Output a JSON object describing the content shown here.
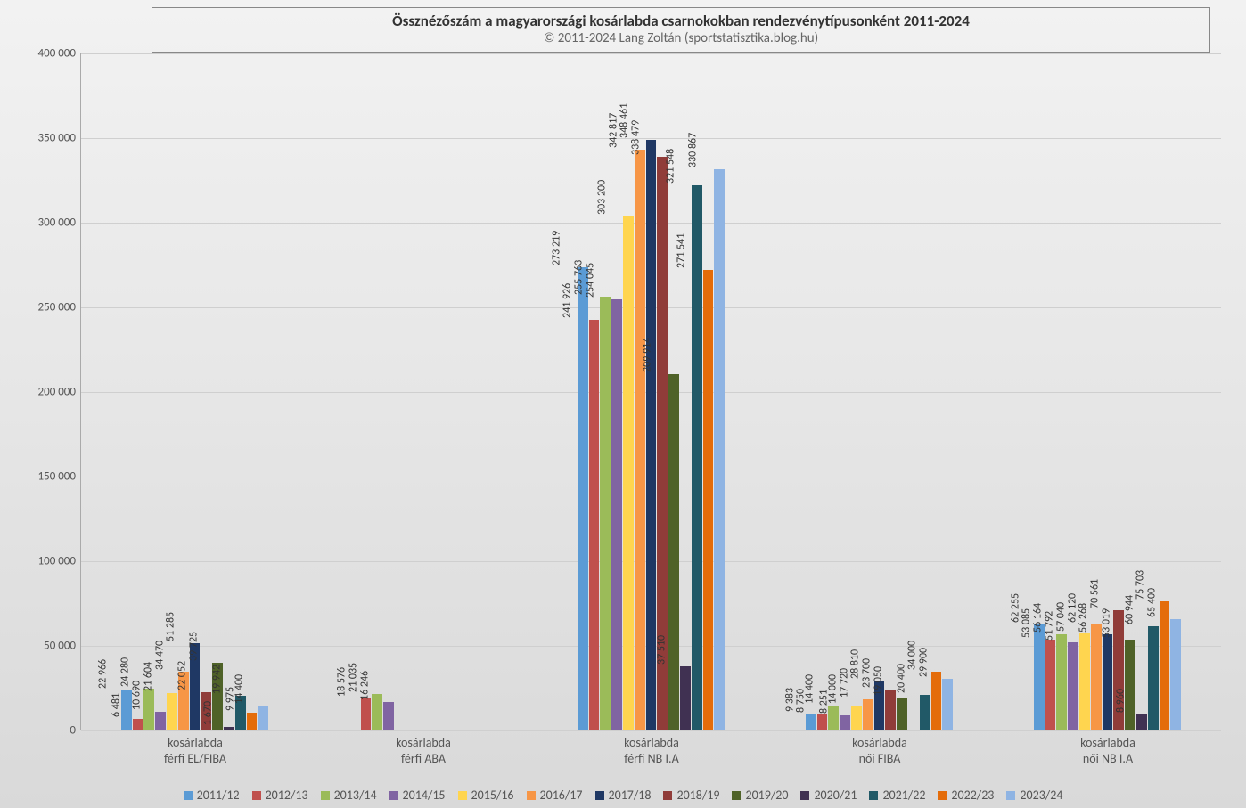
{
  "chart": {
    "type": "bar",
    "title": "Össznézőszám a magyarországi kosárlabda csarnokokban rendezvénytípusonként 2011-2024",
    "subtitle": "© 2011-2024 Lang Zoltán (sportstatisztika.blog.hu)",
    "title_fontsize": 17,
    "subtitle_fontsize": 15,
    "title_color": "#333333",
    "subtitle_color": "#666666",
    "background_gradient": [
      "#f2f2f2",
      "#e6e6e6",
      "#d9d9d9"
    ],
    "grid_color": "#cfcfcf",
    "axis_color": "#aaaaaa",
    "tick_font_size": 13,
    "tick_color": "#555555",
    "cat_label_fontsize": 14,
    "data_label_fontsize": 12,
    "data_label_color": "#333333",
    "legend_fontsize": 14,
    "ylim": [
      0,
      400000
    ],
    "ytick_step": 50000,
    "yticks": [
      "0",
      "50 000",
      "100 000",
      "150 000",
      "200 000",
      "250 000",
      "300 000",
      "350 000",
      "400 000"
    ],
    "number_thousands_sep": " ",
    "bar_group_gap_ratio": 0.35,
    "series": [
      {
        "label": "2011/12",
        "color": "#5b9bd5"
      },
      {
        "label": "2012/13",
        "color": "#c0504d"
      },
      {
        "label": "2013/14",
        "color": "#9bbb59"
      },
      {
        "label": "2014/15",
        "color": "#8064a2"
      },
      {
        "label": "2015/16",
        "color": "#ffd54f"
      },
      {
        "label": "2016/17",
        "color": "#f79646"
      },
      {
        "label": "2017/18",
        "color": "#1f3864"
      },
      {
        "label": "2018/19",
        "color": "#903c39"
      },
      {
        "label": "2019/20",
        "color": "#4f6228"
      },
      {
        "label": "2020/21",
        "color": "#403152"
      },
      {
        "label": "2021/22",
        "color": "#215967"
      },
      {
        "label": "2022/23",
        "color": "#e46c0a"
      },
      {
        "label": "2023/24",
        "color": "#8fb4e3"
      }
    ],
    "categories": [
      {
        "label": "kosárlabda\nférfi EL/FIBA",
        "values": [
          22966,
          6481,
          24280,
          10690,
          21604,
          34470,
          51285,
          22052,
          39725,
          1670,
          19942,
          9975,
          14400
        ]
      },
      {
        "label": "kosárlabda\nférfi ABA",
        "values": [
          null,
          18576,
          21035,
          16246,
          null,
          null,
          null,
          null,
          null,
          null,
          null,
          null,
          null
        ]
      },
      {
        "label": "kosárlabda\nférfi NB I.A",
        "values": [
          273219,
          241926,
          255763,
          254045,
          303200,
          342817,
          348461,
          338479,
          209914,
          37510,
          321548,
          271541,
          330867
        ]
      },
      {
        "label": "kosárlabda\nnői FIBA",
        "values": [
          9383,
          8750,
          14400,
          8251,
          14000,
          17720,
          28810,
          23700,
          19050,
          null,
          20400,
          34000,
          29900
        ]
      },
      {
        "label": "kosárlabda\nnői NB I.A",
        "values": [
          62255,
          53085,
          56164,
          51792,
          57040,
          62120,
          56268,
          70561,
          53019,
          8960,
          60944,
          75703,
          65400
        ]
      }
    ]
  }
}
